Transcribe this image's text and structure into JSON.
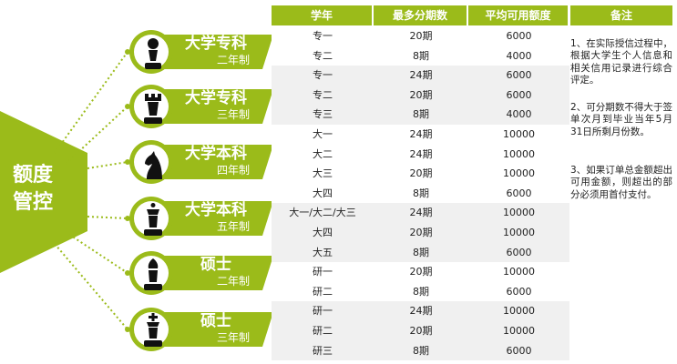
{
  "hub": {
    "line1": "额度",
    "line2": "管控"
  },
  "pills": [
    {
      "title": "大学专科",
      "sub": "二年制",
      "piece": "pawn-icon"
    },
    {
      "title": "大学专科",
      "sub": "三年制",
      "piece": "rook-icon"
    },
    {
      "title": "大学本科",
      "sub": "四年制",
      "piece": "knight-icon"
    },
    {
      "title": "大学本科",
      "sub": "五年制",
      "piece": "queen-icon"
    },
    {
      "title": "硕士",
      "sub": "二年制",
      "piece": "bishop-icon"
    },
    {
      "title": "硕士",
      "sub": "三年制",
      "piece": "king-icon"
    }
  ],
  "headers": {
    "year": "学年",
    "max_terms": "最多分期数",
    "avg_limit": "平均可用额度",
    "remarks": "备注"
  },
  "rows": [
    {
      "year": "专一",
      "terms": "20期",
      "limit": "6000"
    },
    {
      "year": "专二",
      "terms": "8期",
      "limit": "4000"
    },
    {
      "year": "专一",
      "terms": "24期",
      "limit": "6000"
    },
    {
      "year": "专二",
      "terms": "20期",
      "limit": "6000"
    },
    {
      "year": "专三",
      "terms": "8期",
      "limit": "4000"
    },
    {
      "year": "大一",
      "terms": "24期",
      "limit": "10000"
    },
    {
      "year": "大二",
      "terms": "24期",
      "limit": "10000"
    },
    {
      "year": "大三",
      "terms": "20期",
      "limit": "10000"
    },
    {
      "year": "大四",
      "terms": "8期",
      "limit": "6000"
    },
    {
      "year": "大一/大二/大三",
      "terms": "24期",
      "limit": "10000"
    },
    {
      "year": "大四",
      "terms": "20期",
      "limit": "10000"
    },
    {
      "year": "大五",
      "terms": "8期",
      "limit": "6000"
    },
    {
      "year": "研一",
      "terms": "20期",
      "limit": "10000"
    },
    {
      "year": "研二",
      "terms": "8期",
      "limit": "6000"
    },
    {
      "year": "研一",
      "terms": "24期",
      "limit": "10000"
    },
    {
      "year": "研二",
      "terms": "20期",
      "limit": "10000"
    },
    {
      "year": "研三",
      "terms": "8期",
      "limit": "6000"
    }
  ],
  "notes": [
    "1、在实际授信过程中，根据大学生个人信息和相关信用记录进行综合评定。",
    "2、可分期数不得大于签单次月到毕业当年5月31日所剩月份数。",
    "3、如果订单总金额超出可用金额，则超出的部分必须用首付支付。"
  ],
  "colors": {
    "accent": "#9bbb1a",
    "band_light": "#f0f0f0",
    "band_white": "#ffffff"
  }
}
